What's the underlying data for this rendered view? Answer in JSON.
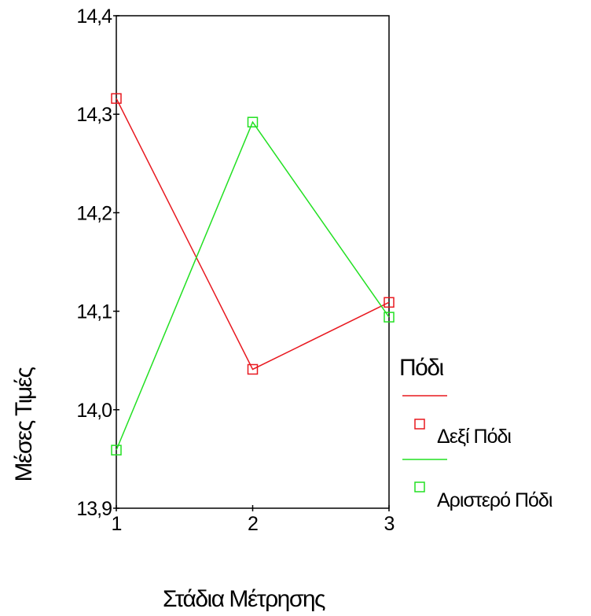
{
  "chart_data": {
    "type": "line",
    "title": "",
    "xlabel": "Στάδια Μέτρησης",
    "ylabel": "Μέσες Τιμές",
    "x": [
      1,
      2,
      3
    ],
    "x_tick_labels": [
      "1",
      "2",
      "3"
    ],
    "xlim": [
      1,
      3
    ],
    "ylim": [
      13.9,
      14.4
    ],
    "y_ticks": [
      13.9,
      14.0,
      14.1,
      14.2,
      14.3,
      14.4
    ],
    "y_tick_labels": [
      "13,9",
      "14,0",
      "14,1",
      "14,2",
      "14,3",
      "14,4"
    ],
    "grid": false,
    "legend": {
      "title": "Πόδι",
      "placement": "right"
    },
    "series": [
      {
        "name": "Δεξί Πόδι",
        "color": "#e8181f",
        "marker": "square",
        "values": [
          14.316,
          14.041,
          14.109
        ]
      },
      {
        "name": "Αριστερό Πόδι",
        "color": "#22e022",
        "marker": "square",
        "values": [
          13.959,
          14.292,
          14.094
        ]
      }
    ]
  }
}
